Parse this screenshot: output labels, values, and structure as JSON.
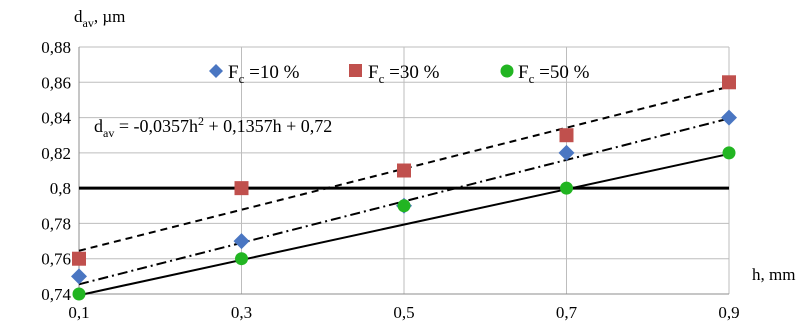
{
  "chart_data": {
    "type": "scatter",
    "ylabel": {
      "main": "d",
      "sub": "av",
      "unit": ", µm"
    },
    "xlabel": "h, mm",
    "x_ticks": [
      "0,1",
      "0,3",
      "0,5",
      "0,7",
      "0,9"
    ],
    "y_ticks": [
      "0,74",
      "0,76",
      "0,78",
      "0,8",
      "0,82",
      "0,84",
      "0,86",
      "0,88"
    ],
    "xlim": [
      0.1,
      0.9
    ],
    "ylim": [
      0.74,
      0.88
    ],
    "grid": {
      "vertical": true,
      "horizontal": true
    },
    "reference_line": {
      "y": 0.8
    },
    "legend_position": "top",
    "x": [
      0.1,
      0.3,
      0.5,
      0.7,
      0.9
    ],
    "series": [
      {
        "name": {
          "main": "F",
          "sub": "c",
          "rest": " =10 %"
        },
        "marker": "diamond",
        "color": "#4a76c2",
        "values": [
          0.75,
          0.77,
          0.79,
          0.82,
          0.84
        ],
        "trend": {
          "style": "dashdot",
          "start": 0.7455,
          "end": 0.8395
        }
      },
      {
        "name": {
          "main": "F",
          "sub": "c",
          "rest": " =30 %"
        },
        "marker": "square",
        "color": "#c0504d",
        "values": [
          0.76,
          0.8,
          0.81,
          0.83,
          0.86
        ],
        "trend": {
          "style": "dashed",
          "start": 0.7645,
          "end": 0.8575
        }
      },
      {
        "name": {
          "main": "F",
          "sub": "c",
          "rest": " =50 %"
        },
        "marker": "circle",
        "color": "#22b522",
        "values": [
          0.74,
          0.76,
          0.79,
          0.8,
          0.82
        ],
        "trend": {
          "style": "solid",
          "start": 0.7393,
          "end": 0.8194
        }
      }
    ],
    "annotation": {
      "lhs_main": "d",
      "lhs_sub": "av",
      "rhs_a": " = -0,0357h",
      "rhs_exp": "2",
      "rhs_b": " + 0,1357h + 0,72"
    }
  }
}
